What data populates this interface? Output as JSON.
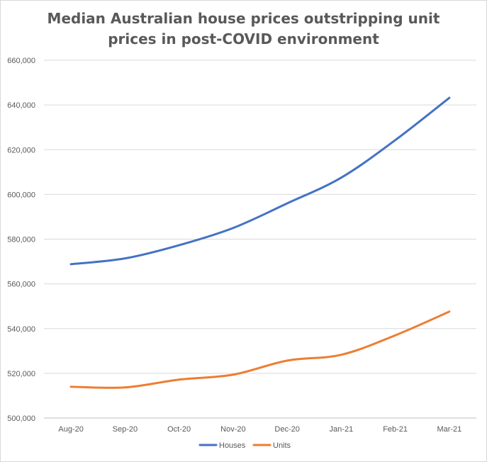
{
  "chart_data": {
    "type": "line",
    "title_lines": [
      "Median Australian house prices outstripping unit",
      "prices in post-COVID environment"
    ],
    "categories": [
      "Aug-20",
      "Sep-20",
      "Oct-20",
      "Nov-20",
      "Dec-20",
      "Jan-21",
      "Feb-21",
      "Mar-21"
    ],
    "series": [
      {
        "name": "Houses",
        "color": "#4472c4",
        "values": [
          568800,
          571400,
          577300,
          585000,
          596000,
          607500,
          624300,
          643200
        ]
      },
      {
        "name": "Units",
        "color": "#ed7d31",
        "values": [
          514000,
          513700,
          517200,
          519400,
          525700,
          528300,
          537000,
          547600
        ]
      }
    ],
    "y_ticks": [
      "500,000",
      "520,000",
      "540,000",
      "560,000",
      "580,000",
      "600,000",
      "620,000",
      "640,000",
      "660,000"
    ],
    "ylim": [
      500000,
      660000
    ],
    "grid": true,
    "legend_position": "bottom"
  }
}
